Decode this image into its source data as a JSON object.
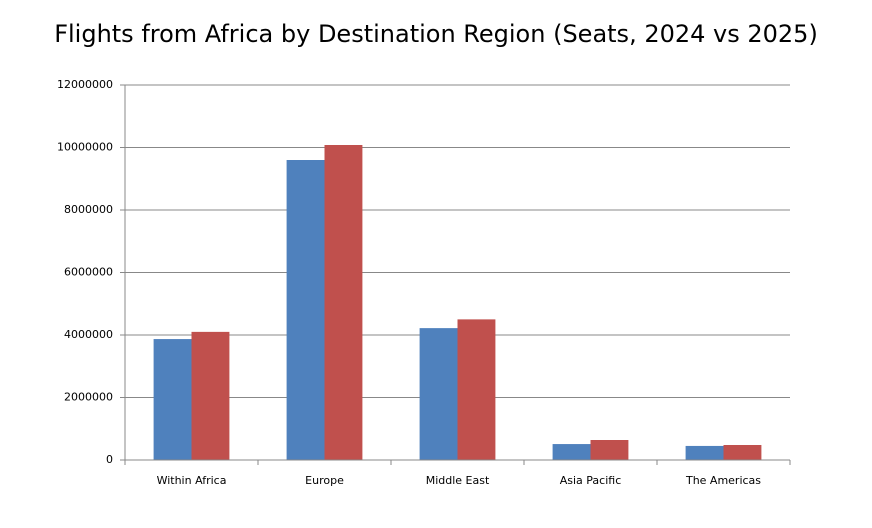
{
  "chart_data": {
    "type": "bar",
    "title": "Flights from Africa by Destination Region (Seats, 2024 vs 2025)",
    "categories": [
      "Within Africa",
      "Europe",
      "Middle East",
      "Asia Pacific",
      "The Americas"
    ],
    "series": [
      {
        "color": "#4f81bd",
        "values": [
          3870000,
          9600000,
          4220000,
          510000,
          450000
        ]
      },
      {
        "color": "#c0504d",
        "values": [
          4100000,
          10080000,
          4500000,
          640000,
          480000
        ]
      }
    ],
    "ylim": [
      0,
      12000000
    ],
    "yticks": [
      0,
      2000000,
      4000000,
      6000000,
      8000000,
      10000000,
      12000000
    ],
    "grid": true
  }
}
